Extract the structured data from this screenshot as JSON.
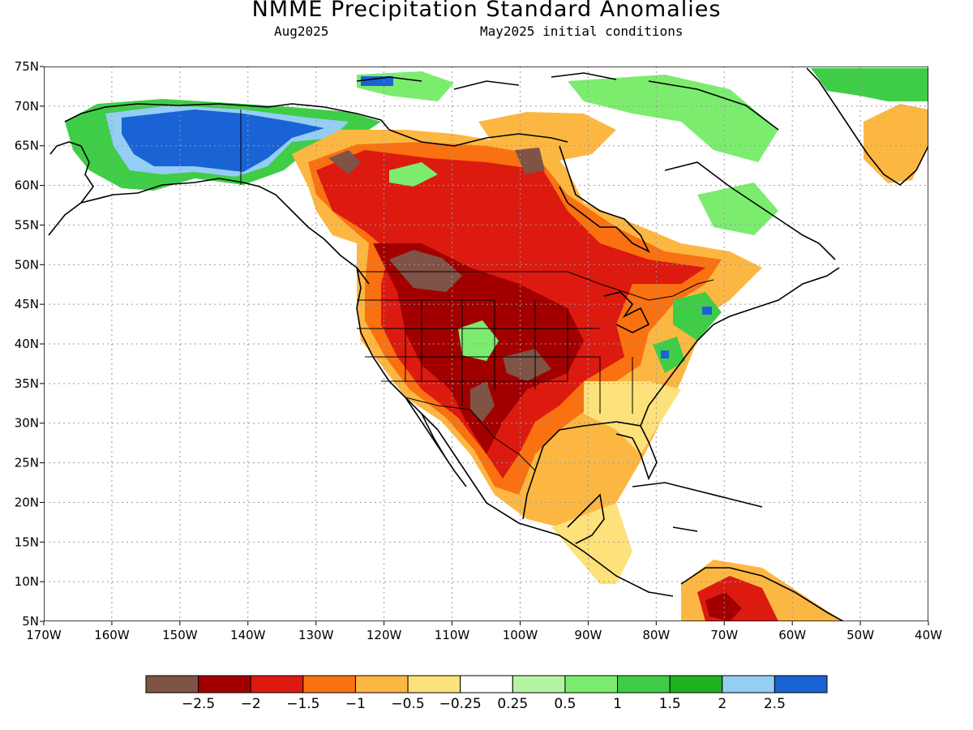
{
  "title": "NMME Precipitation Standard Anomalies",
  "subtitle_left": "Aug2025",
  "subtitle_right": "May2025 initial conditions",
  "lat_labels": [
    "75N",
    "70N",
    "65N",
    "60N",
    "55N",
    "50N",
    "45N",
    "40N",
    "35N",
    "30N",
    "25N",
    "20N",
    "15N",
    "10N",
    "5N"
  ],
  "lon_labels": [
    "170W",
    "160W",
    "150W",
    "140W",
    "130W",
    "120W",
    "110W",
    "100W",
    "90W",
    "80W",
    "70W",
    "60W",
    "50W",
    "40W"
  ],
  "colorbar": {
    "colors": [
      "#7f5346",
      "#a20000",
      "#dc1a10",
      "#f97111",
      "#fcb743",
      "#fde17a",
      "#ffffff",
      "#b4f5a4",
      "#7cec6e",
      "#3fcd48",
      "#1fb21f",
      "#95cdf4",
      "#1a63d4"
    ],
    "labels": [
      "−2.5",
      "−2",
      "−1.5",
      "−1",
      "−0.5",
      "−0.25",
      "0.25",
      "0.5",
      "1",
      "1.5",
      "2",
      "2.5"
    ]
  }
}
